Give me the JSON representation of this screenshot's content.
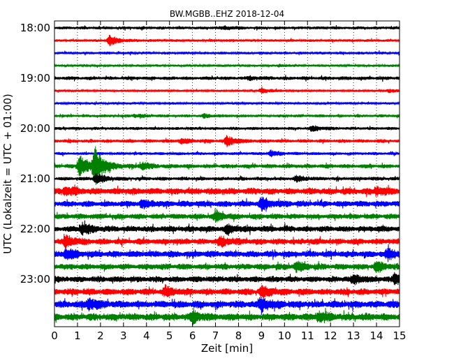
{
  "chart_data": {
    "type": "line",
    "title": "BW.MGBB..EHZ 2018-12-04",
    "xlabel": "Zeit  [min]",
    "ylabel": "UTC (Lokalzeit = UTC + 01:00)",
    "xlim": [
      0,
      15
    ],
    "x_ticks": [
      "0",
      "1",
      "2",
      "3",
      "4",
      "5",
      "6",
      "7",
      "8",
      "9",
      "10",
      "11",
      "12",
      "13",
      "14",
      "15"
    ],
    "y_tick_labels": [
      "18:00",
      "19:00",
      "20:00",
      "21:00",
      "22:00",
      "23:00"
    ],
    "y_tick_rows": [
      0,
      4,
      8,
      12,
      16,
      20
    ],
    "grid": "vertical dotted",
    "trace_minutes": 15,
    "color_cycle": [
      "#000000",
      "#ff0000",
      "#0000ff",
      "#008000"
    ],
    "series": [
      {
        "start": "18:00",
        "color": "#000000",
        "amp": 2.5,
        "bursts": [
          {
            "t": 7.4,
            "a": 2
          }
        ]
      },
      {
        "start": "18:15",
        "color": "#ff0000",
        "amp": 2.2,
        "bursts": [
          {
            "t": 2.4,
            "a": 7
          }
        ]
      },
      {
        "start": "18:30",
        "color": "#0000ff",
        "amp": 2.3,
        "bursts": []
      },
      {
        "start": "18:45",
        "color": "#008000",
        "amp": 1.8,
        "bursts": [
          {
            "t": 9.8,
            "a": 2
          }
        ]
      },
      {
        "start": "19:00",
        "color": "#000000",
        "amp": 3.0,
        "bursts": [
          {
            "t": 8.5,
            "a": 2
          }
        ]
      },
      {
        "start": "19:15",
        "color": "#ff0000",
        "amp": 1.8,
        "bursts": [
          {
            "t": 9.0,
            "a": 4
          },
          {
            "t": 14.5,
            "a": 2
          }
        ]
      },
      {
        "start": "19:30",
        "color": "#0000ff",
        "amp": 2.0,
        "bursts": []
      },
      {
        "start": "19:45",
        "color": "#008000",
        "amp": 2.5,
        "bursts": [
          {
            "t": 3.5,
            "a": 2
          },
          {
            "t": 6.5,
            "a": 2
          }
        ]
      },
      {
        "start": "20:00",
        "color": "#000000",
        "amp": 2.5,
        "bursts": [
          {
            "t": 11.2,
            "a": 4
          }
        ]
      },
      {
        "start": "20:15",
        "color": "#ff0000",
        "amp": 3.0,
        "bursts": [
          {
            "t": 7.5,
            "a": 7
          },
          {
            "t": 5.5,
            "a": 3
          }
        ]
      },
      {
        "start": "20:30",
        "color": "#0000ff",
        "amp": 2.5,
        "bursts": [
          {
            "t": 9.4,
            "a": 4
          }
        ]
      },
      {
        "start": "20:45",
        "color": "#008000",
        "amp": 3.5,
        "bursts": [
          {
            "t": 1.75,
            "a": 28
          },
          {
            "t": 1.1,
            "a": 16
          },
          {
            "t": 3.8,
            "a": 5
          }
        ]
      },
      {
        "start": "21:00",
        "color": "#000000",
        "amp": 3.0,
        "bursts": [
          {
            "t": 1.8,
            "a": 7
          },
          {
            "t": 10.5,
            "a": 4
          }
        ]
      },
      {
        "start": "21:15",
        "color": "#ff0000",
        "amp": 5.5,
        "bursts": [
          {
            "t": 0.5,
            "a": 6
          },
          {
            "t": 14.0,
            "a": 5
          }
        ]
      },
      {
        "start": "21:30",
        "color": "#0000ff",
        "amp": 5.0,
        "bursts": [
          {
            "t": 9.0,
            "a": 8
          },
          {
            "t": 3.8,
            "a": 5
          }
        ]
      },
      {
        "start": "21:45",
        "color": "#008000",
        "amp": 4.5,
        "bursts": [
          {
            "t": 7.0,
            "a": 6
          }
        ]
      },
      {
        "start": "22:00",
        "color": "#000000",
        "amp": 5.0,
        "bursts": [
          {
            "t": 1.2,
            "a": 8
          },
          {
            "t": 7.5,
            "a": 5
          }
        ]
      },
      {
        "start": "22:15",
        "color": "#ff0000",
        "amp": 5.0,
        "bursts": [
          {
            "t": 0.5,
            "a": 8
          },
          {
            "t": 7.2,
            "a": 6
          }
        ]
      },
      {
        "start": "22:30",
        "color": "#0000ff",
        "amp": 5.5,
        "bursts": [
          {
            "t": 0.5,
            "a": 7
          },
          {
            "t": 14.5,
            "a": 7
          }
        ]
      },
      {
        "start": "22:45",
        "color": "#008000",
        "amp": 5.0,
        "bursts": [
          {
            "t": 10.5,
            "a": 6
          },
          {
            "t": 14.0,
            "a": 6
          }
        ]
      },
      {
        "start": "23:00",
        "color": "#000000",
        "amp": 5.0,
        "bursts": [
          {
            "t": 13.0,
            "a": 6
          },
          {
            "t": 14.8,
            "a": 7
          }
        ]
      },
      {
        "start": "23:15",
        "color": "#ff0000",
        "amp": 5.5,
        "bursts": [
          {
            "t": 9.0,
            "a": 8
          },
          {
            "t": 4.8,
            "a": 6
          }
        ]
      },
      {
        "start": "23:30",
        "color": "#0000ff",
        "amp": 6.0,
        "bursts": [
          {
            "t": 9.0,
            "a": 8
          },
          {
            "t": 1.5,
            "a": 7
          }
        ]
      },
      {
        "start": "23:45",
        "color": "#008000",
        "amp": 6.0,
        "bursts": [
          {
            "t": 6.0,
            "a": 7
          },
          {
            "t": 11.5,
            "a": 6
          }
        ]
      }
    ]
  }
}
